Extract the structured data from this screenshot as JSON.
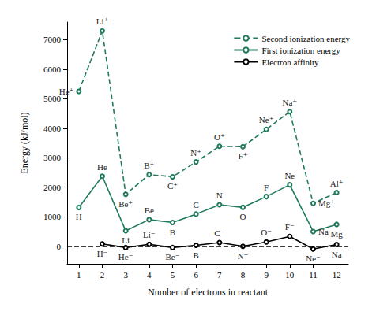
{
  "chart_data": {
    "type": "line",
    "xlabel": "Number of electrons in reactant",
    "ylabel": "Energy (kJ/mol)",
    "xlim": [
      0.5,
      12.5
    ],
    "xticks": [
      1,
      2,
      3,
      4,
      5,
      6,
      7,
      8,
      9,
      10,
      11,
      12
    ],
    "ylim": [
      -600,
      7600
    ],
    "yticks": [
      0,
      1000,
      2000,
      3000,
      4000,
      5000,
      6000,
      7000
    ],
    "grid": false,
    "legend": "upper right",
    "marker": "o",
    "hline": 0,
    "series": [
      {
        "name": "Second ionization energy",
        "color": "#1f7a5c",
        "line_style": "dashed",
        "x": [
          1,
          2,
          3,
          4,
          5,
          6,
          7,
          8,
          9,
          10,
          11,
          12
        ],
        "values": [
          5250,
          7298,
          1757,
          2427,
          2353,
          2856,
          3388,
          3375,
          3963,
          4562,
          1451,
          1817
        ],
        "labels": [
          "He⁺",
          "Li⁺",
          "Be⁺",
          "B⁺",
          "C⁺",
          "N⁺",
          "O⁺",
          "F⁺",
          "Ne⁺",
          "Na⁺",
          "Mg⁺",
          "Al⁺"
        ]
      },
      {
        "name": "First ionization energy",
        "color": "#1f7a5c",
        "line_style": "solid",
        "x": [
          1,
          2,
          3,
          4,
          5,
          6,
          7,
          8,
          9,
          10,
          11,
          12
        ],
        "values": [
          1312,
          2372,
          520,
          899,
          801,
          1086,
          1402,
          1314,
          1681,
          2081,
          496,
          738
        ],
        "labels": [
          "H",
          "He",
          "Li",
          "Be",
          "B",
          "C",
          "N",
          "O",
          "F",
          "Ne",
          "Na",
          "Mg"
        ]
      },
      {
        "name": "Electron affinity",
        "color": "#000000",
        "line_style": "solid",
        "x": [
          2,
          3,
          4,
          5,
          6,
          7,
          8,
          9,
          10,
          11,
          12
        ],
        "values": [
          73,
          -50,
          60,
          -50,
          27,
          122,
          -7,
          141,
          328,
          -100,
          53
        ],
        "labels": [
          "H⁻",
          "He⁻",
          "Li⁻",
          "Be⁻",
          "B",
          "C⁻",
          "N⁻",
          "O⁻",
          "F⁻",
          "Ne⁻",
          "Na"
        ]
      }
    ]
  }
}
